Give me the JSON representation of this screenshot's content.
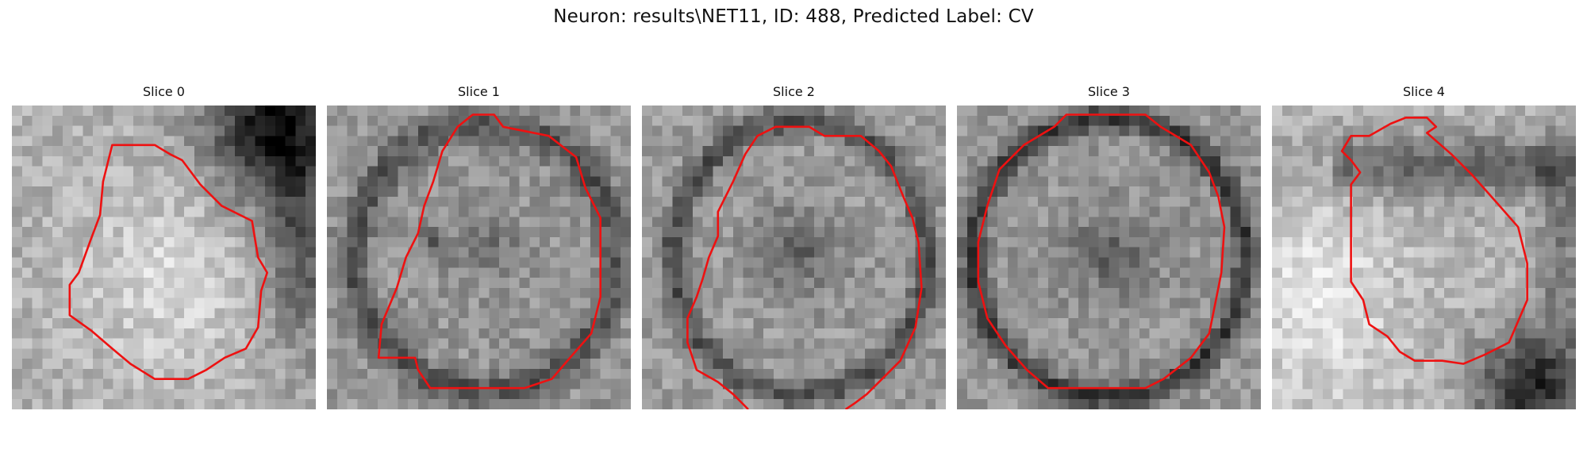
{
  "figure": {
    "title": "Neuron: results\\NET11, ID: 488, Predicted Label: CV"
  },
  "contour_color": "#ee1111",
  "slices": [
    {
      "title": "Slice 0",
      "contour_open": false,
      "contour": [
        [
          0.33,
          0.13
        ],
        [
          0.47,
          0.13
        ],
        [
          0.52,
          0.16
        ],
        [
          0.56,
          0.18
        ],
        [
          0.62,
          0.26
        ],
        [
          0.69,
          0.33
        ],
        [
          0.79,
          0.38
        ],
        [
          0.81,
          0.5
        ],
        [
          0.84,
          0.55
        ],
        [
          0.82,
          0.61
        ],
        [
          0.81,
          0.73
        ],
        [
          0.77,
          0.8
        ],
        [
          0.7,
          0.83
        ],
        [
          0.64,
          0.87
        ],
        [
          0.58,
          0.9
        ],
        [
          0.47,
          0.9
        ],
        [
          0.39,
          0.85
        ],
        [
          0.33,
          0.8
        ],
        [
          0.26,
          0.74
        ],
        [
          0.19,
          0.69
        ],
        [
          0.19,
          0.59
        ],
        [
          0.22,
          0.55
        ],
        [
          0.26,
          0.44
        ],
        [
          0.29,
          0.36
        ],
        [
          0.3,
          0.25
        ]
      ]
    },
    {
      "title": "Slice 1",
      "contour_open": false,
      "contour": [
        [
          0.43,
          0.07
        ],
        [
          0.48,
          0.03
        ],
        [
          0.55,
          0.03
        ],
        [
          0.58,
          0.07
        ],
        [
          0.73,
          0.1
        ],
        [
          0.82,
          0.17
        ],
        [
          0.85,
          0.27
        ],
        [
          0.9,
          0.37
        ],
        [
          0.9,
          0.63
        ],
        [
          0.87,
          0.75
        ],
        [
          0.8,
          0.83
        ],
        [
          0.74,
          0.9
        ],
        [
          0.65,
          0.93
        ],
        [
          0.34,
          0.93
        ],
        [
          0.3,
          0.87
        ],
        [
          0.29,
          0.83
        ],
        [
          0.17,
          0.83
        ],
        [
          0.18,
          0.72
        ],
        [
          0.23,
          0.6
        ],
        [
          0.26,
          0.5
        ],
        [
          0.3,
          0.42
        ],
        [
          0.32,
          0.33
        ],
        [
          0.35,
          0.25
        ],
        [
          0.38,
          0.15
        ]
      ]
    },
    {
      "title": "Slice 2",
      "contour_open": true,
      "contour": [
        [
          0.35,
          1.0
        ],
        [
          0.3,
          0.95
        ],
        [
          0.25,
          0.91
        ],
        [
          0.18,
          0.87
        ],
        [
          0.15,
          0.78
        ],
        [
          0.15,
          0.7
        ],
        [
          0.18,
          0.63
        ],
        [
          0.2,
          0.57
        ],
        [
          0.22,
          0.5
        ],
        [
          0.25,
          0.43
        ],
        [
          0.25,
          0.35
        ],
        [
          0.3,
          0.25
        ],
        [
          0.34,
          0.16
        ],
        [
          0.38,
          0.1
        ],
        [
          0.44,
          0.07
        ],
        [
          0.55,
          0.07
        ],
        [
          0.6,
          0.1
        ],
        [
          0.72,
          0.1
        ],
        [
          0.78,
          0.15
        ],
        [
          0.82,
          0.2
        ],
        [
          0.86,
          0.3
        ],
        [
          0.89,
          0.37
        ],
        [
          0.91,
          0.45
        ],
        [
          0.92,
          0.6
        ],
        [
          0.9,
          0.73
        ],
        [
          0.85,
          0.84
        ],
        [
          0.79,
          0.9
        ],
        [
          0.74,
          0.95
        ],
        [
          0.7,
          0.98
        ],
        [
          0.67,
          1.0
        ]
      ]
    },
    {
      "title": "Slice 3",
      "contour_open": false,
      "contour": [
        [
          0.32,
          0.07
        ],
        [
          0.36,
          0.03
        ],
        [
          0.62,
          0.03
        ],
        [
          0.67,
          0.07
        ],
        [
          0.77,
          0.13
        ],
        [
          0.83,
          0.22
        ],
        [
          0.86,
          0.3
        ],
        [
          0.88,
          0.4
        ],
        [
          0.87,
          0.55
        ],
        [
          0.85,
          0.65
        ],
        [
          0.83,
          0.75
        ],
        [
          0.77,
          0.83
        ],
        [
          0.68,
          0.9
        ],
        [
          0.62,
          0.93
        ],
        [
          0.3,
          0.93
        ],
        [
          0.23,
          0.87
        ],
        [
          0.16,
          0.79
        ],
        [
          0.1,
          0.7
        ],
        [
          0.07,
          0.58
        ],
        [
          0.07,
          0.45
        ],
        [
          0.1,
          0.33
        ],
        [
          0.14,
          0.21
        ],
        [
          0.22,
          0.13
        ]
      ]
    },
    {
      "title": "Slice 4",
      "contour_open": false,
      "contour": [
        [
          0.26,
          0.1
        ],
        [
          0.32,
          0.1
        ],
        [
          0.39,
          0.06
        ],
        [
          0.44,
          0.04
        ],
        [
          0.51,
          0.04
        ],
        [
          0.54,
          0.07
        ],
        [
          0.51,
          0.09
        ],
        [
          0.59,
          0.16
        ],
        [
          0.66,
          0.23
        ],
        [
          0.74,
          0.32
        ],
        [
          0.81,
          0.4
        ],
        [
          0.84,
          0.52
        ],
        [
          0.84,
          0.64
        ],
        [
          0.81,
          0.71
        ],
        [
          0.78,
          0.78
        ],
        [
          0.7,
          0.82
        ],
        [
          0.63,
          0.85
        ],
        [
          0.56,
          0.84
        ],
        [
          0.47,
          0.84
        ],
        [
          0.42,
          0.81
        ],
        [
          0.38,
          0.76
        ],
        [
          0.32,
          0.72
        ],
        [
          0.3,
          0.64
        ],
        [
          0.26,
          0.58
        ],
        [
          0.26,
          0.48
        ],
        [
          0.26,
          0.26
        ],
        [
          0.29,
          0.22
        ],
        [
          0.26,
          0.18
        ],
        [
          0.23,
          0.15
        ]
      ]
    }
  ]
}
